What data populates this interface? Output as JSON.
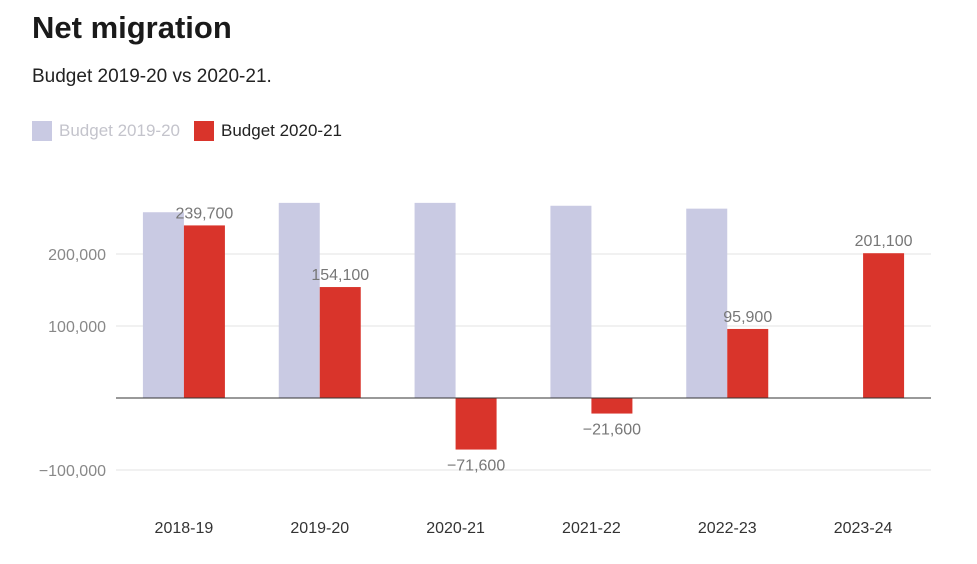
{
  "header": {
    "title": "Net migration",
    "subtitle": "Budget 2019-20 vs 2020-21."
  },
  "chart_data": {
    "type": "bar",
    "title": "Net migration",
    "subtitle": "Budget 2019-20 vs 2020-21.",
    "categories": [
      "2018-19",
      "2019-20",
      "2020-21",
      "2021-22",
      "2022-23",
      "2023-24"
    ],
    "series": [
      {
        "name": "Budget 2019-20",
        "color": "#c9cae3",
        "values": [
          258000,
          271000,
          271000,
          267000,
          263000,
          null
        ],
        "labels": [
          "",
          "",
          "",
          "",
          "",
          ""
        ]
      },
      {
        "name": "Budget 2020-21",
        "color": "#d9342b",
        "values": [
          239700,
          154100,
          -71600,
          -21600,
          95900,
          201100
        ],
        "labels": [
          "239,700",
          "154,100",
          "−71,600",
          "−21,600",
          "95,900",
          "201,100"
        ]
      }
    ],
    "yticks": [
      {
        "value": -100000,
        "label": "−100,000"
      },
      {
        "value": 100000,
        "label": "100,000"
      },
      {
        "value": 200000,
        "label": "200,000"
      }
    ],
    "ylim": [
      -135000,
      300000
    ],
    "xlabel": "",
    "ylabel": "",
    "grid": true,
    "legend_position": "top-left"
  }
}
